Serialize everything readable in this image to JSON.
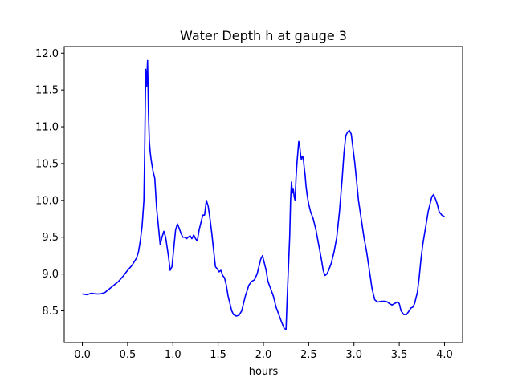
{
  "chart_data": {
    "type": "line",
    "title": "Water Depth h at gauge 3",
    "xlabel": "hours",
    "ylabel": "",
    "xlim": [
      -0.2,
      4.2
    ],
    "ylim": [
      8.07,
      12.09
    ],
    "grid": false,
    "legend": "none",
    "color": "#0000ff",
    "x_ticks": [
      0.0,
      0.5,
      1.0,
      1.5,
      2.0,
      2.5,
      3.0,
      3.5,
      4.0
    ],
    "x_tick_labels": [
      "0.0",
      "0.5",
      "1.0",
      "1.5",
      "2.0",
      "2.5",
      "3.0",
      "3.5",
      "4.0"
    ],
    "y_ticks": [
      8.5,
      9.0,
      9.5,
      10.0,
      10.5,
      11.0,
      11.5,
      12.0
    ],
    "y_tick_labels": [
      "8.5",
      "9.0",
      "9.5",
      "10.0",
      "10.5",
      "11.0",
      "11.5",
      "12.0"
    ],
    "series": [
      {
        "x": [
          0.0,
          0.05,
          0.1,
          0.15,
          0.2,
          0.25,
          0.3,
          0.35,
          0.4,
          0.45,
          0.5,
          0.55,
          0.6,
          0.62,
          0.64,
          0.66,
          0.68,
          0.69,
          0.7,
          0.71,
          0.72,
          0.725,
          0.73,
          0.735,
          0.74,
          0.75,
          0.76,
          0.78,
          0.8,
          0.82,
          0.84,
          0.86,
          0.88,
          0.9,
          0.92,
          0.95,
          0.97,
          0.99,
          1.01,
          1.03,
          1.05,
          1.07,
          1.09,
          1.11,
          1.13,
          1.15,
          1.17,
          1.19,
          1.21,
          1.23,
          1.25,
          1.27,
          1.29,
          1.31,
          1.33,
          1.35,
          1.37,
          1.39,
          1.41,
          1.43,
          1.45,
          1.47,
          1.49,
          1.51,
          1.53,
          1.55,
          1.57,
          1.59,
          1.61,
          1.63,
          1.65,
          1.67,
          1.7,
          1.73,
          1.76,
          1.8,
          1.84,
          1.87,
          1.9,
          1.93,
          1.95,
          1.97,
          1.99,
          2.01,
          2.03,
          2.05,
          2.08,
          2.11,
          2.14,
          2.17,
          2.2,
          2.23,
          2.25,
          2.26,
          2.27,
          2.28,
          2.29,
          2.3,
          2.31,
          2.32,
          2.33,
          2.34,
          2.35,
          2.36,
          2.37,
          2.38,
          2.39,
          2.4,
          2.41,
          2.42,
          2.43,
          2.44,
          2.45,
          2.46,
          2.47,
          2.48,
          2.49,
          2.5,
          2.52,
          2.55,
          2.58,
          2.61,
          2.64,
          2.66,
          2.68,
          2.7,
          2.72,
          2.75,
          2.78,
          2.81,
          2.84,
          2.87,
          2.89,
          2.91,
          2.93,
          2.95,
          2.97,
          2.99,
          3.01,
          3.03,
          3.05,
          3.08,
          3.11,
          3.14,
          3.17,
          3.2,
          3.23,
          3.26,
          3.3,
          3.35,
          3.37,
          3.39,
          3.42,
          3.45,
          3.48,
          3.5,
          3.52,
          3.55,
          3.58,
          3.61,
          3.63,
          3.65,
          3.67,
          3.7,
          3.72,
          3.74,
          3.76,
          3.78,
          3.8,
          3.82,
          3.84,
          3.86,
          3.88,
          3.9,
          3.92,
          3.94,
          3.97,
          4.0
        ],
        "y": [
          8.73,
          8.72,
          8.74,
          8.73,
          8.73,
          8.75,
          8.8,
          8.85,
          8.9,
          8.97,
          9.05,
          9.12,
          9.22,
          9.3,
          9.45,
          9.65,
          10.0,
          10.8,
          11.78,
          11.55,
          11.9,
          11.6,
          11.2,
          11.0,
          10.8,
          10.65,
          10.55,
          10.4,
          10.3,
          9.9,
          9.65,
          9.4,
          9.5,
          9.58,
          9.5,
          9.25,
          9.05,
          9.1,
          9.35,
          9.6,
          9.68,
          9.62,
          9.55,
          9.5,
          9.5,
          9.48,
          9.5,
          9.52,
          9.48,
          9.53,
          9.48,
          9.45,
          9.6,
          9.7,
          9.8,
          9.8,
          10.0,
          9.92,
          9.75,
          9.55,
          9.32,
          9.1,
          9.07,
          9.03,
          9.05,
          8.98,
          8.95,
          8.85,
          8.7,
          8.6,
          8.5,
          8.45,
          8.43,
          8.44,
          8.5,
          8.7,
          8.85,
          8.9,
          8.92,
          9.0,
          9.1,
          9.2,
          9.25,
          9.15,
          9.05,
          8.9,
          8.8,
          8.7,
          8.55,
          8.45,
          8.35,
          8.26,
          8.25,
          8.6,
          8.9,
          9.2,
          9.5,
          10.0,
          10.25,
          10.1,
          10.15,
          10.05,
          10.0,
          10.3,
          10.5,
          10.65,
          10.8,
          10.75,
          10.62,
          10.55,
          10.6,
          10.58,
          10.45,
          10.35,
          10.2,
          10.1,
          10.02,
          9.95,
          9.85,
          9.75,
          9.6,
          9.4,
          9.2,
          9.05,
          8.98,
          9.0,
          9.05,
          9.15,
          9.3,
          9.5,
          9.85,
          10.3,
          10.65,
          10.88,
          10.93,
          10.95,
          10.9,
          10.7,
          10.5,
          10.25,
          10.0,
          9.75,
          9.5,
          9.3,
          9.05,
          8.8,
          8.65,
          8.62,
          8.63,
          8.63,
          8.62,
          8.6,
          8.58,
          8.6,
          8.62,
          8.6,
          8.5,
          8.45,
          8.45,
          8.5,
          8.54,
          8.55,
          8.6,
          8.75,
          8.95,
          9.2,
          9.4,
          9.55,
          9.7,
          9.85,
          9.95,
          10.05,
          10.08,
          10.02,
          9.95,
          9.85,
          9.8,
          9.78
        ]
      }
    ]
  }
}
